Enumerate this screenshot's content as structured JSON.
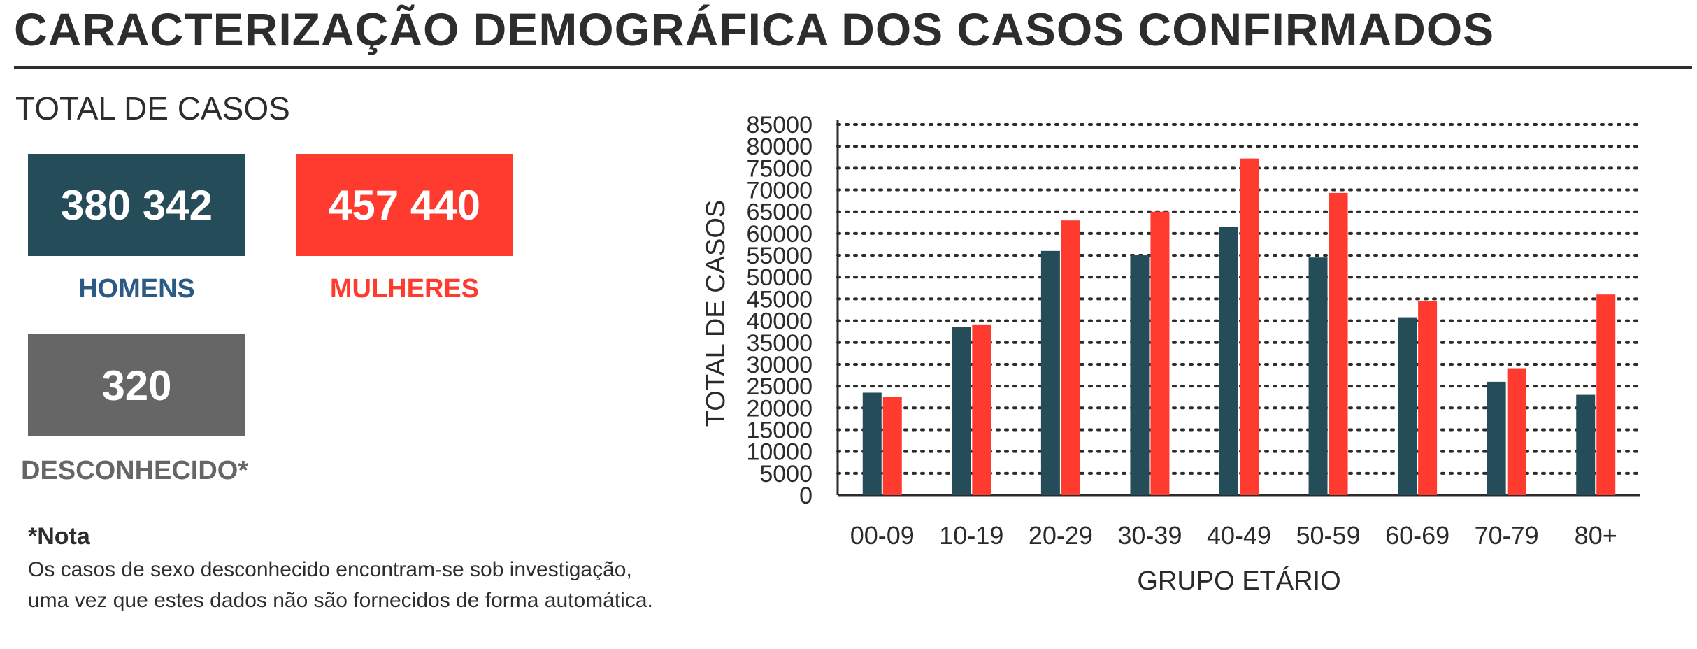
{
  "header": {
    "title": "CARACTERIZAÇÃO DEMOGRÁFICA DOS CASOS CONFIRMADOS"
  },
  "totals": {
    "section_title": "TOTAL DE CASOS",
    "men": {
      "value": "380 342",
      "label": "HOMENS"
    },
    "women": {
      "value": "457 440",
      "label": "MULHERES"
    },
    "unknown": {
      "value": "320",
      "label": "DESCONHECIDO*"
    }
  },
  "note": {
    "title": "*Nota",
    "lines": [
      "Os casos de sexo desconhecido encontram-se sob investigação,",
      "uma vez que estes dados não são fornecidos de forma automática."
    ]
  },
  "colors": {
    "men": "#254c59",
    "women": "#ff3b30",
    "unknown": "#666666",
    "men_label": "#2b5a85"
  },
  "chart_data": {
    "type": "bar",
    "categories": [
      "00-09",
      "10-19",
      "20-29",
      "30-39",
      "40-49",
      "50-59",
      "60-69",
      "70-79",
      "80+"
    ],
    "series": [
      {
        "values": [
          23500,
          38500,
          56000,
          55000,
          61500,
          54500,
          40800,
          26000,
          23000
        ]
      },
      {
        "values": [
          22500,
          39000,
          63000,
          65000,
          77200,
          69300,
          44500,
          29100,
          46000
        ]
      }
    ],
    "xlabel": "GRUPO ETÁRIO",
    "ylabel": "TOTAL DE CASOS",
    "ylim": [
      0,
      85000
    ],
    "ytick_step": 5000,
    "grid": "horizontal-dotted",
    "legend": "none"
  }
}
